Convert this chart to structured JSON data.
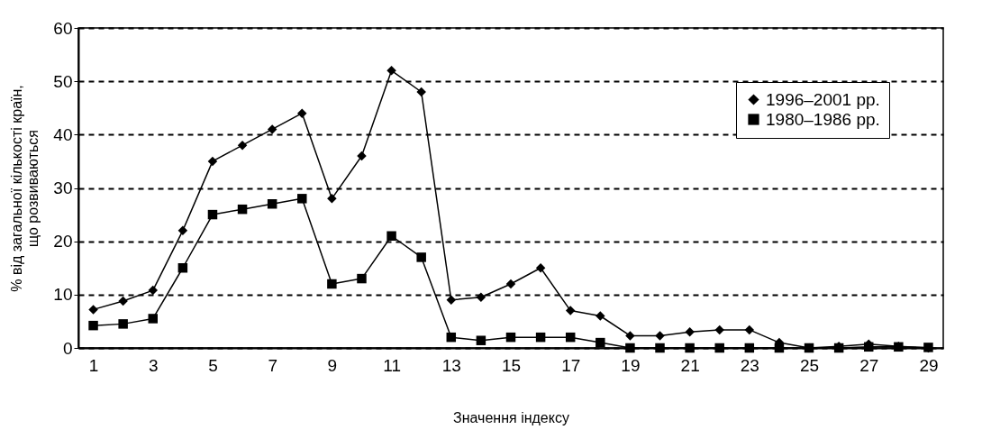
{
  "chart_data": {
    "type": "line",
    "xlabel": "Значення індексу",
    "ylabel": "%  від загальної кількості країн,\nщо розвиваються",
    "x": [
      1,
      2,
      3,
      4,
      5,
      6,
      7,
      8,
      9,
      10,
      11,
      12,
      13,
      14,
      15,
      16,
      17,
      18,
      19,
      20,
      21,
      22,
      23,
      24,
      25,
      26,
      27,
      28,
      29
    ],
    "series": [
      {
        "name": "1996–2001 рр.",
        "color": "#000000",
        "marker": "diamond",
        "values": [
          7.2,
          8.8,
          10.8,
          22,
          35,
          38,
          41,
          44,
          28,
          36,
          52,
          48,
          9,
          9.5,
          12,
          15,
          7,
          6,
          2.3,
          2.3,
          3,
          3.4,
          3.4,
          1,
          0,
          0.3,
          0.7,
          0.3,
          0
        ]
      },
      {
        "name": "1980–1986 рр.",
        "color": "#000000",
        "marker": "square",
        "values": [
          4.2,
          4.5,
          5.5,
          15,
          25,
          26,
          27,
          28,
          12,
          13,
          21,
          17,
          2,
          1.4,
          2,
          2,
          2,
          1,
          0,
          0,
          0,
          0,
          0,
          0,
          0,
          0,
          0.2,
          0.2,
          0.1
        ]
      }
    ],
    "xlim": [
      0.5,
      29.5
    ],
    "xticks": [
      1,
      3,
      5,
      7,
      9,
      11,
      13,
      15,
      17,
      19,
      21,
      23,
      25,
      27,
      29
    ],
    "ylim": [
      0,
      60
    ],
    "yticks": [
      0,
      10,
      20,
      30,
      40,
      50,
      60
    ],
    "grid": "y",
    "legend": "top right",
    "line_style": "solid"
  }
}
